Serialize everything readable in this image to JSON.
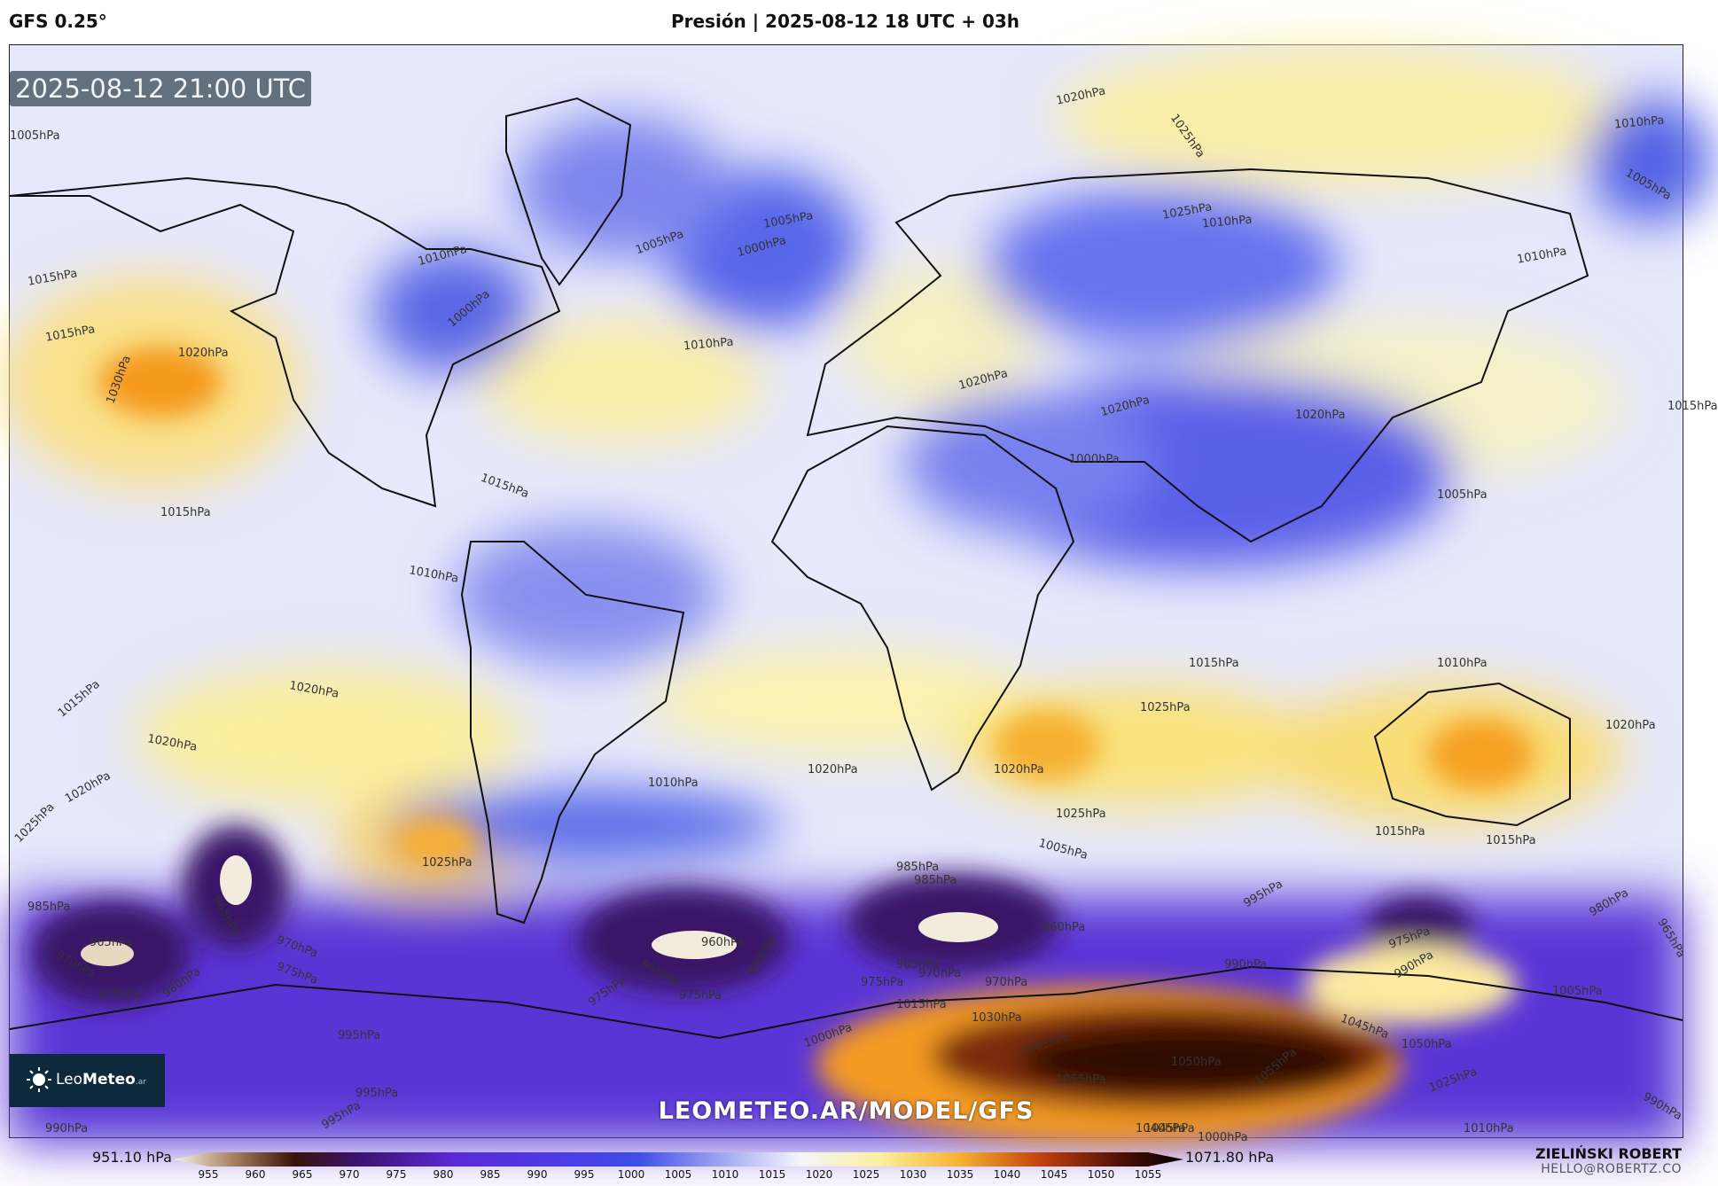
{
  "header": {
    "model": "GFS 0.25°",
    "title": "Presión | 2025-08-12 18 UTC + 03h"
  },
  "map": {
    "valid_time": "2025-08-12 21:00 UTC",
    "watermark": "LEOMETEO.AR/MODEL/GFS",
    "logo": {
      "brand_light": "Leo",
      "brand_bold": "Meteo",
      "tld": ".ar"
    },
    "pressure_labels": [
      "1020hPa",
      "1025hPa",
      "1010hPa",
      "1005hPa",
      "1015hPa",
      "1030hPa",
      "1020hPa",
      "1015hPa",
      "1010hPa",
      "1000hPa",
      "1005hPa",
      "1010hPa",
      "1000hPa",
      "1005hPa",
      "1020hPa",
      "1010hPa",
      "1020hPa",
      "1010hPa",
      "1005hPa",
      "1025hPa",
      "1015hPa",
      "1010hPa",
      "1020hPa",
      "1020hPa",
      "1015hPa",
      "1005hPa",
      "1000hPa",
      "1020hPa",
      "1015hPa",
      "1010hPa",
      "1015hPa",
      "1025hPa",
      "1020hPa",
      "1020hPa",
      "1015hPa",
      "1010hPa",
      "1025hPa",
      "1020hPa",
      "1025hPa",
      "1015hPa",
      "1025hPa",
      "1020hPa",
      "1015hPa",
      "1005hPa",
      "985hPa",
      "980hPa",
      "995hPa",
      "995hPa",
      "985hPa",
      "965hPa",
      "965hPa",
      "970hPa",
      "970hPa",
      "975hPa",
      "975hPa",
      "980hPa",
      "975hPa",
      "970hPa",
      "960hPa",
      "965hPa",
      "970hPa",
      "975hPa",
      "960hPa",
      "965hPa",
      "970hPa",
      "975hPa",
      "985hPa",
      "975hPa",
      "990hPa",
      "990hPa",
      "965hPa",
      "1000hPa",
      "1015hPa",
      "1030hPa",
      "1065hPa",
      "1050hPa",
      "1055hPa",
      "1045hPa",
      "1055hPa",
      "1050hPa",
      "1025hPa",
      "1005hPa",
      "990hPa",
      "1010hPa",
      "1045hPa",
      "1040hPa",
      "995hPa",
      "995hPa",
      "990hPa",
      "1000hPa"
    ]
  },
  "colorbar": {
    "min_label": "951.10 hPa",
    "max_label": "1071.80 hPa",
    "ticks": [
      "955",
      "960",
      "965",
      "970",
      "975",
      "980",
      "985",
      "990",
      "995",
      "1000",
      "1005",
      "1010",
      "1015",
      "1020",
      "1025",
      "1030",
      "1035",
      "1040",
      "1045",
      "1050",
      "1055"
    ]
  },
  "author": {
    "name": "ZIELIŃSKI ROBERT",
    "email": "HELLO@ROBERTZ.CO"
  },
  "colors": {
    "low_deep": "#2a1060",
    "low": "#5a2bd8",
    "mid_low": "#5c6cf0",
    "neutral": "#f4f4fb",
    "high": "#fbf0a0",
    "high_strong": "#f6a020",
    "extreme": "#3a0a05"
  }
}
